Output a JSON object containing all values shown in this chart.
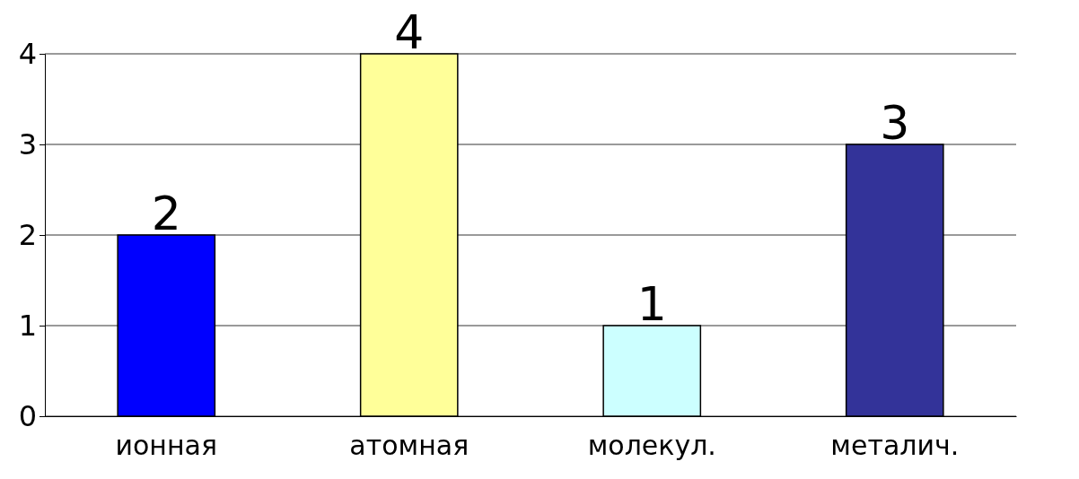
{
  "chart_data": {
    "type": "bar",
    "categories": [
      "ионная",
      "атомная",
      "молекул.",
      "металич."
    ],
    "values": [
      2,
      4,
      1,
      3
    ],
    "colors": [
      "#0000ff",
      "#ffff99",
      "#ccffff",
      "#333399"
    ],
    "ylim": [
      0,
      4
    ],
    "yticks": [
      0,
      1,
      2,
      3,
      4
    ],
    "grid": "y",
    "data_labels": true
  }
}
